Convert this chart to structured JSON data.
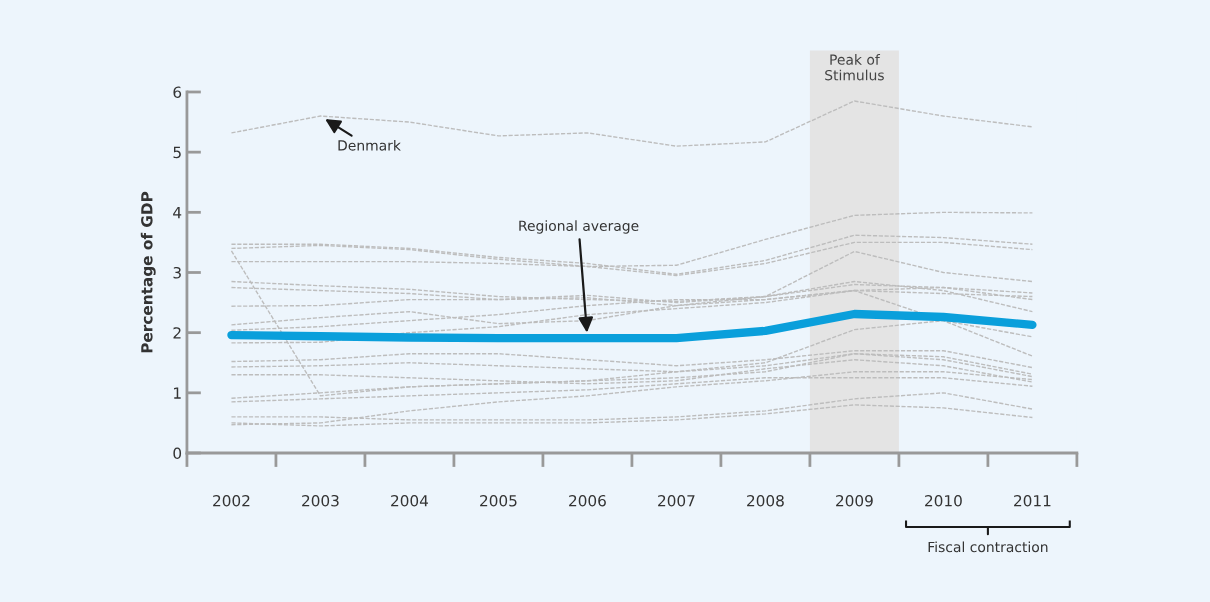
{
  "chart_data": {
    "type": "line",
    "ylabel": "Percentage of GDP",
    "categories": [
      "2002",
      "2003",
      "2004",
      "2005",
      "2006",
      "2007",
      "2008",
      "2009",
      "2010",
      "2011"
    ],
    "ylim": [
      0,
      6
    ],
    "yticks": [
      0,
      1,
      2,
      3,
      4,
      5,
      6
    ],
    "grid": false,
    "legend": false,
    "marker": "none",
    "series": [
      {
        "color": "#bdbdbd",
        "line_style": "dashed",
        "values": [
          5.32,
          5.6,
          5.5,
          5.27,
          5.32,
          5.1,
          5.17,
          5.85,
          5.6,
          5.42
        ]
      },
      {
        "color": "#bdbdbd",
        "line_style": "dashed",
        "values": [
          3.47,
          3.47,
          3.4,
          3.25,
          3.15,
          2.97,
          3.2,
          3.62,
          3.58,
          3.47
        ]
      },
      {
        "color": "#bdbdbd",
        "line_style": "dashed",
        "values": [
          3.4,
          3.45,
          3.38,
          3.22,
          3.1,
          2.95,
          3.15,
          3.5,
          3.5,
          3.38
        ]
      },
      {
        "color": "#bdbdbd",
        "line_style": "dashed",
        "values": [
          3.18,
          3.18,
          3.18,
          3.15,
          3.1,
          3.12,
          3.55,
          3.95,
          4.0,
          3.99
        ]
      },
      {
        "color": "#bdbdbd",
        "line_style": "dashed",
        "values": [
          3.36,
          0.95,
          1.1,
          1.15,
          1.2,
          1.25,
          1.35,
          1.65,
          1.6,
          1.31
        ]
      },
      {
        "color": "#bdbdbd",
        "line_style": "dashed",
        "values": [
          2.85,
          2.78,
          2.72,
          2.6,
          2.55,
          2.52,
          2.6,
          2.8,
          2.75,
          2.66
        ]
      },
      {
        "color": "#bdbdbd",
        "line_style": "dashed",
        "values": [
          2.75,
          2.7,
          2.65,
          2.55,
          2.58,
          2.45,
          2.55,
          2.7,
          2.65,
          2.6
        ]
      },
      {
        "color": "#bdbdbd",
        "line_style": "dashed",
        "values": [
          2.44,
          2.45,
          2.55,
          2.55,
          2.62,
          2.5,
          2.6,
          3.35,
          3.0,
          2.85
        ]
      },
      {
        "color": "#bdbdbd",
        "line_style": "dashed",
        "values": [
          2.13,
          2.25,
          2.35,
          2.15,
          2.2,
          2.45,
          2.6,
          2.85,
          2.7,
          2.35
        ]
      },
      {
        "color": "#bdbdbd",
        "line_style": "dashed",
        "values": [
          2.04,
          2.1,
          2.2,
          2.3,
          2.45,
          2.55,
          2.55,
          2.7,
          2.75,
          2.55
        ]
      },
      {
        "color": "#bdbdbd",
        "line_style": "dashed",
        "values": [
          1.83,
          1.84,
          2.0,
          2.1,
          2.3,
          2.4,
          2.5,
          2.7,
          2.2,
          1.61
        ]
      },
      {
        "color": "#bdbdbd",
        "line_style": "dashed",
        "values": [
          1.52,
          1.55,
          1.65,
          1.65,
          1.55,
          1.45,
          1.55,
          1.7,
          1.7,
          1.42
        ]
      },
      {
        "color": "#bdbdbd",
        "line_style": "dashed",
        "values": [
          1.43,
          1.45,
          1.5,
          1.45,
          1.4,
          1.35,
          1.45,
          1.65,
          1.55,
          1.27
        ]
      },
      {
        "color": "#bdbdbd",
        "line_style": "dashed",
        "values": [
          1.3,
          1.3,
          1.25,
          1.2,
          1.15,
          1.2,
          1.4,
          1.55,
          1.45,
          1.18
        ]
      },
      {
        "color": "#bdbdbd",
        "line_style": "dashed",
        "values": [
          0.91,
          1.0,
          1.1,
          1.15,
          1.2,
          1.35,
          1.5,
          2.05,
          2.2,
          1.93
        ]
      },
      {
        "color": "#bdbdbd",
        "line_style": "dashed",
        "values": [
          0.85,
          0.9,
          0.95,
          1.0,
          1.05,
          1.15,
          1.25,
          1.25,
          1.25,
          1.11
        ]
      },
      {
        "color": "#bdbdbd",
        "line_style": "dashed",
        "values": [
          0.6,
          0.6,
          0.55,
          0.55,
          0.55,
          0.6,
          0.7,
          0.9,
          1.0,
          0.73
        ]
      },
      {
        "color": "#bdbdbd",
        "line_style": "dashed",
        "values": [
          0.5,
          0.45,
          0.5,
          0.5,
          0.5,
          0.55,
          0.65,
          0.8,
          0.75,
          0.59
        ]
      },
      {
        "color": "#bdbdbd",
        "line_style": "dashed",
        "values": [
          0.47,
          0.5,
          0.7,
          0.85,
          0.95,
          1.1,
          1.2,
          1.35,
          1.35,
          1.22
        ]
      },
      {
        "color": "#0a9fdb",
        "line_style": "solid",
        "values": [
          1.96,
          1.94,
          1.92,
          1.91,
          1.91,
          1.91,
          2.03,
          2.31,
          2.26,
          2.13
        ]
      }
    ],
    "bands": [
      {
        "axis": "x",
        "from": "2009",
        "to": "2009",
        "label": "Peak of\nStimulus",
        "color": "#e4e4e4"
      }
    ],
    "annotations": [
      {
        "text": "Denmark",
        "x": "2003",
        "y": 5.6
      },
      {
        "text": "Regional average",
        "x": "2006",
        "y": 1.91
      },
      "Fiscal contraction"
    ]
  }
}
